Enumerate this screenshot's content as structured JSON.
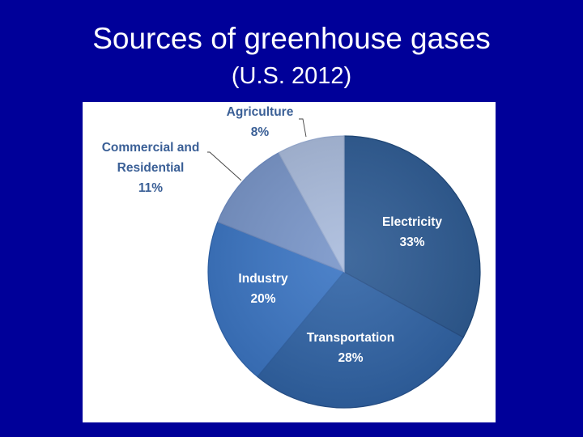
{
  "slide": {
    "title": "Sources of greenhouse gases",
    "subtitle": "(U.S.  2012)"
  },
  "chart_data": {
    "type": "pie",
    "start_angle_deg": 0,
    "direction": "clockwise",
    "slices": [
      {
        "label_lines": [
          "Electricity"
        ],
        "percent_label": "33%",
        "value": 33,
        "color": "#2c5a93",
        "edge_color": "#1d4677",
        "text_color": "#ffffff",
        "label_placement": "inside"
      },
      {
        "label_lines": [
          "Transportation"
        ],
        "percent_label": "28%",
        "value": 28,
        "color": "#2f63a6",
        "edge_color": "#264f88",
        "text_color": "#ffffff",
        "label_placement": "inside"
      },
      {
        "label_lines": [
          "Industry"
        ],
        "percent_label": "20%",
        "value": 20,
        "color": "#3a75c4",
        "edge_color": "#2e62a8",
        "text_color": "#ffffff",
        "label_placement": "inside"
      },
      {
        "label_lines": [
          "Commercial and",
          "Residential"
        ],
        "percent_label": "11%",
        "value": 11,
        "color": "#7895c9",
        "edge_color": "#6a87bd",
        "text_color": "#3a5f96",
        "label_placement": "outside"
      },
      {
        "label_lines": [
          "Agriculture"
        ],
        "percent_label": "8%",
        "value": 8,
        "color": "#a9bbdc",
        "edge_color": "#97abd0",
        "text_color": "#3a5f96",
        "label_placement": "outside"
      }
    ]
  }
}
